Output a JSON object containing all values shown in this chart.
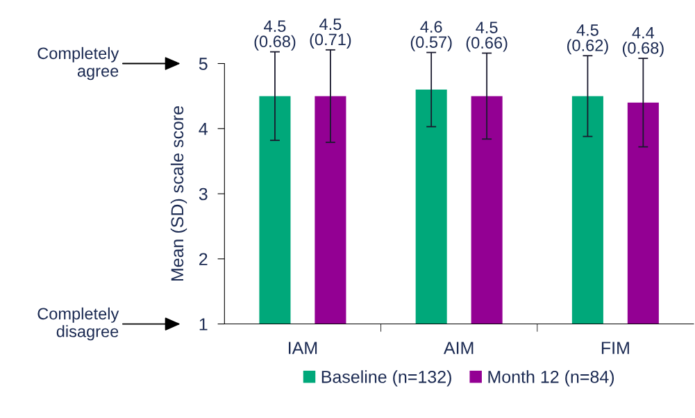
{
  "chart_data": {
    "type": "bar",
    "ylabel": "Mean (SD) scale score",
    "categories": [
      "IAM",
      "AIM",
      "FIM"
    ],
    "series": [
      {
        "name": "Baseline (n=132)",
        "color": "#00a87a",
        "values": [
          4.5,
          4.6,
          4.5
        ],
        "errors": [
          0.68,
          0.57,
          0.62
        ],
        "value_labels": [
          "4.5\n(0.68)",
          "4.6\n(0.57)",
          "4.5\n(0.62)"
        ]
      },
      {
        "name": "Month 12 (n=84)",
        "color": "#930093",
        "values": [
          4.5,
          4.5,
          4.4
        ],
        "errors": [
          0.71,
          0.66,
          0.68
        ],
        "value_labels": [
          "4.5\n(0.71)",
          "4.5\n(0.66)",
          "4.4\n(0.68)"
        ]
      }
    ],
    "ylim": [
      1,
      5
    ],
    "yticks": [
      1,
      2,
      3,
      4,
      5
    ],
    "annotations": [
      "Completely\nagree",
      "Completely\ndisagree"
    ],
    "grid": false,
    "legend": "bottom"
  }
}
